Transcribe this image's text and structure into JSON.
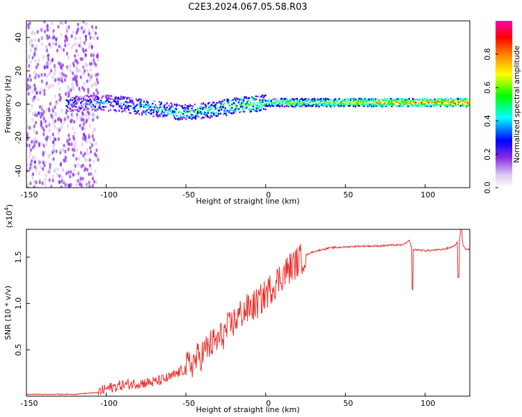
{
  "chart_data": [
    {
      "type": "heatmap",
      "title": "C2E3.2024.067.05.58.R03",
      "xlabel": "Height of straight line (km)",
      "ylabel": "Frequency (Hz)",
      "xlim": [
        -150,
        128
      ],
      "ylim": [
        -50,
        50
      ],
      "x_ticks": [
        -150,
        -100,
        -50,
        0,
        50,
        100
      ],
      "y_ticks": [
        -40,
        -20,
        0,
        20,
        40
      ],
      "colorbar": {
        "label": "Normalized spectral amplitude",
        "range": [
          0,
          1
        ],
        "ticks": [
          "0.0",
          "0.2",
          "0.4",
          "0.6",
          "0.8"
        ],
        "colors": [
          "#ffffff",
          "#d8c8f0",
          "#8a2be2",
          "#0000ff",
          "#00ffff",
          "#00ff00",
          "#ffff00",
          "#ff8000",
          "#ff0000",
          "#ff00aa"
        ]
      },
      "ridge": {
        "description_points_km_hz": [
          [
            -125,
            0
          ],
          [
            -105,
            1
          ],
          [
            -90,
            0
          ],
          [
            -75,
            -2
          ],
          [
            -60,
            -4
          ],
          [
            -50,
            -5
          ],
          [
            -40,
            -4
          ],
          [
            -30,
            -3
          ],
          [
            -20,
            -1
          ],
          [
            -10,
            0
          ],
          [
            0,
            1
          ],
          [
            20,
            1
          ],
          [
            50,
            1
          ],
          [
            80,
            1
          ],
          [
            100,
            1
          ],
          [
            125,
            1
          ]
        ]
      }
    },
    {
      "type": "line",
      "xlabel": "Height of straight line (km)",
      "ylabel": "SNR (10 * v/v)",
      "y_exponent": "(x10",
      "y_exponent_power": "4",
      "y_exponent_close": ")",
      "xlim": [
        -150,
        128
      ],
      "ylim": [
        0,
        1.8
      ],
      "x_ticks": [
        -150,
        -100,
        -50,
        0,
        50,
        100
      ],
      "y_ticks": [
        "0.5",
        "1.0",
        "1.5"
      ],
      "line_color": "#e8302a",
      "series": [
        {
          "name": "SNR",
          "x": [
            -150,
            -120,
            -105,
            -100,
            -90,
            -80,
            -70,
            -60,
            -50,
            -40,
            -35,
            -30,
            -25,
            -20,
            -15,
            -10,
            -5,
            0,
            5,
            10,
            15,
            20,
            25,
            30,
            40,
            50,
            60,
            70,
            80,
            85,
            88,
            90,
            92,
            95,
            100,
            110,
            115,
            118,
            120,
            122,
            125,
            128
          ],
          "values": [
            0.02,
            0.02,
            0.04,
            0.08,
            0.12,
            0.14,
            0.15,
            0.2,
            0.3,
            0.45,
            0.55,
            0.6,
            0.7,
            0.8,
            0.9,
            0.95,
            1.0,
            1.1,
            1.2,
            1.3,
            1.38,
            1.45,
            1.52,
            1.56,
            1.6,
            1.61,
            1.62,
            1.62,
            1.63,
            1.63,
            1.65,
            1.68,
            1.58,
            1.58,
            1.57,
            1.58,
            1.6,
            1.62,
            1.65,
            1.72,
            1.59,
            1.58
          ]
        }
      ]
    }
  ]
}
